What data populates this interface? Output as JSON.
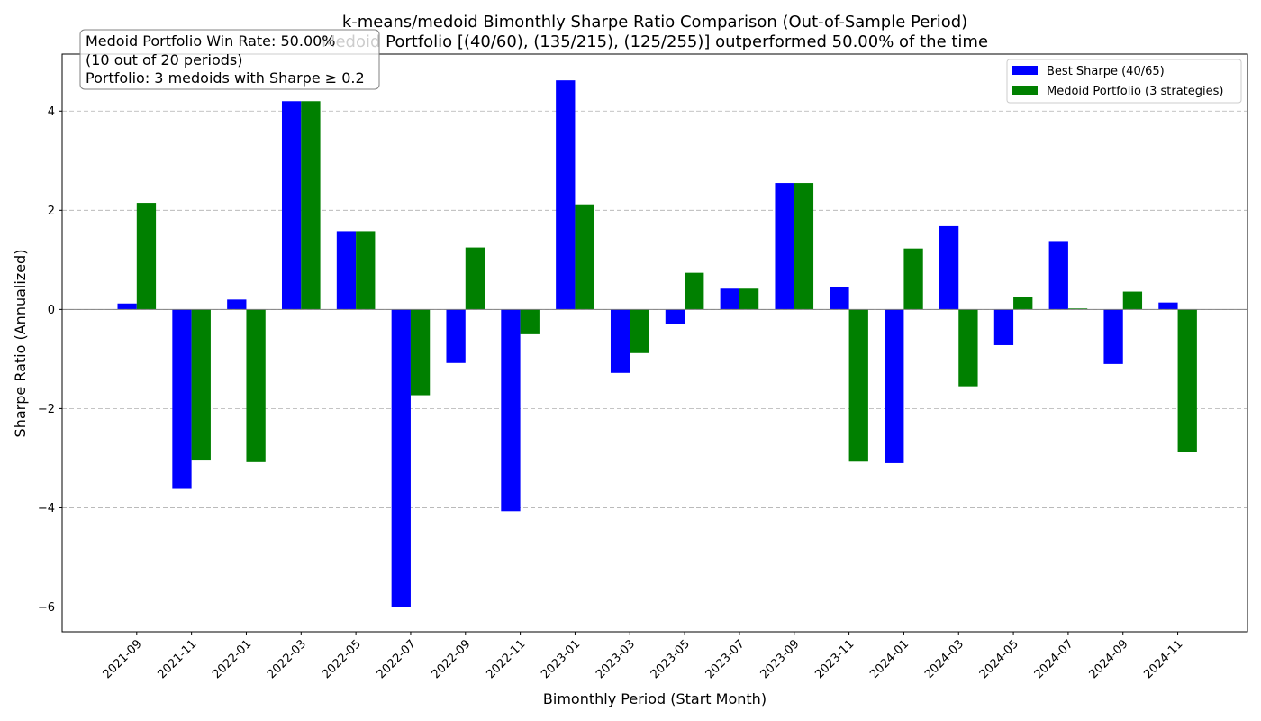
{
  "chart_data": {
    "type": "bar",
    "title_line1": "k-means/medoid Bimonthly Sharpe Ratio Comparison (Out-of-Sample Period)",
    "title_line2": "Medoid Portfolio [(40/60), (135/215), (125/255)] outperformed 50.00% of the time",
    "xlabel": "Bimonthly Period (Start Month)",
    "ylabel": "Sharpe Ratio (Annualized)",
    "ylim": [
      -6.5,
      5.15
    ],
    "yticks": [
      -6,
      -4,
      -2,
      0,
      2,
      4
    ],
    "ytick_labels": [
      "−6",
      "−4",
      "−2",
      "0",
      "2",
      "4"
    ],
    "grid": true,
    "legend_position": "top-right",
    "categories": [
      "2021-09",
      "2021-11",
      "2022-01",
      "2022-03",
      "2022-05",
      "2022-07",
      "2022-09",
      "2022-11",
      "2023-01",
      "2023-03",
      "2023-05",
      "2023-07",
      "2023-09",
      "2023-11",
      "2024-01",
      "2024-03",
      "2024-05",
      "2024-07",
      "2024-09",
      "2024-11"
    ],
    "series": [
      {
        "name": "Best Sharpe (40/65)",
        "color": "#0000ff",
        "values": [
          0.12,
          -3.62,
          0.2,
          4.2,
          1.58,
          -6.0,
          -1.08,
          -4.07,
          4.62,
          -1.28,
          -0.3,
          0.42,
          2.55,
          0.45,
          -3.1,
          1.68,
          -0.72,
          1.38,
          -1.1,
          0.14
        ]
      },
      {
        "name": "Medoid Portfolio (3 strategies)",
        "color": "#008000",
        "values": [
          2.15,
          -3.03,
          -3.08,
          4.2,
          1.58,
          -1.73,
          1.25,
          -0.5,
          2.12,
          -0.88,
          0.74,
          0.42,
          2.55,
          -3.07,
          1.23,
          -1.55,
          0.25,
          0.02,
          0.36,
          -2.87
        ]
      }
    ],
    "info_box": {
      "line1": "Medoid Portfolio Win Rate: 50.00%",
      "line2": "(10 out of 20 periods)",
      "line3": "Portfolio: 3 medoids with Sharpe ≥ 0.2"
    }
  }
}
